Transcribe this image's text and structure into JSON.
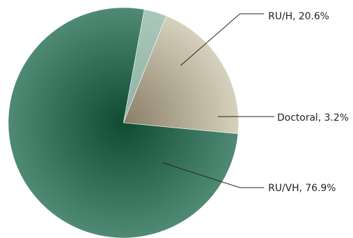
{
  "chart_data": {
    "type": "pie",
    "title": "",
    "slices": [
      {
        "label": "RU/H, 20.6%",
        "category": "RU/H",
        "value": 20.6,
        "color": "#c9c3ad",
        "gradient_dark": "#8a7e66",
        "gradient_light": "#d6d1bd"
      },
      {
        "label": "Doctoral, 3.2%",
        "category": "Doctoral",
        "value": 3.2,
        "color": "#9fbfb2",
        "gradient_dark": "#8db3a4",
        "gradient_light": "#a9c7bb"
      },
      {
        "label": "RU/VH, 76.9%",
        "category": "RU/VH",
        "value": 76.9,
        "color": "#3f7a64",
        "gradient_dark": "#0f4a33",
        "gradient_light": "#4f8a74"
      }
    ],
    "start_angle_deg": -5.5,
    "direction": "counterclockwise"
  }
}
